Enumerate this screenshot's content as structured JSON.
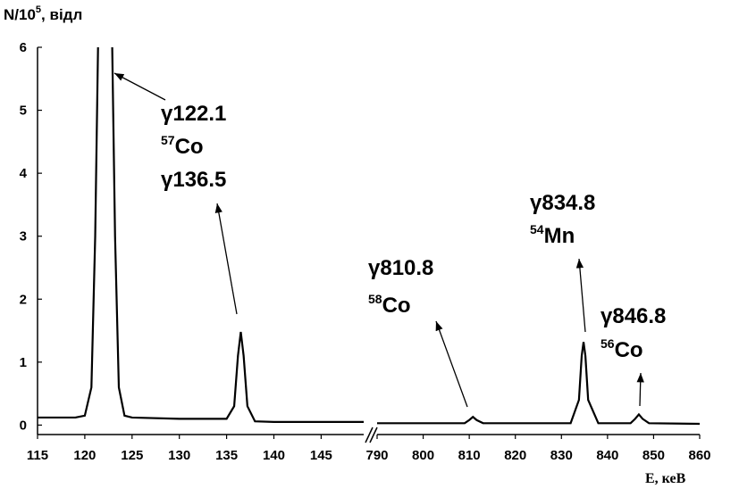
{
  "chart_data": {
    "type": "line",
    "y_label": {
      "base": "N/10",
      "sup": "5",
      "rest": ", відл"
    },
    "x_label": "E, кеВ",
    "color": "#000000",
    "ylim": [
      -0.15,
      6
    ],
    "yticks": [
      0,
      1,
      2,
      3,
      4,
      5,
      6
    ],
    "panels": [
      {
        "xlim": [
          115,
          149.5
        ],
        "xticks": [
          115,
          120,
          125,
          130,
          135,
          140,
          145
        ],
        "x": [
          115,
          119,
          120,
          120.7,
          121.1,
          121.4,
          122.1,
          122.9,
          123.2,
          123.6,
          124.2,
          125,
          130,
          135,
          135.8,
          136.2,
          136.5,
          136.8,
          137.2,
          138,
          140,
          149.5
        ],
        "values": [
          0.12,
          0.12,
          0.15,
          0.6,
          3,
          6,
          null,
          6,
          3,
          0.6,
          0.15,
          0.12,
          0.1,
          0.1,
          0.3,
          1.1,
          1.48,
          1.1,
          0.3,
          0.06,
          0.05,
          0.05
        ]
      },
      {
        "xlim": [
          790,
          860
        ],
        "xticks": [
          790,
          800,
          810,
          820,
          830,
          840,
          850,
          860
        ],
        "x": [
          790,
          809,
          810,
          810.8,
          811.6,
          813,
          832,
          833.8,
          834.4,
          834.8,
          835.2,
          835.8,
          838,
          845,
          846,
          846.8,
          847.6,
          849,
          860
        ],
        "values": [
          0.03,
          0.03,
          0.08,
          0.13,
          0.08,
          0.03,
          0.03,
          0.4,
          1.1,
          1.32,
          1.1,
          0.4,
          0.03,
          0.03,
          0.1,
          0.17,
          0.1,
          0.03,
          0.02
        ]
      }
    ],
    "annotations": [
      {
        "lines": [
          {
            "text": "γ122.1"
          },
          {
            "sup": "57",
            "text": "Co"
          },
          {
            "text": "γ136.5"
          }
        ]
      },
      {
        "lines": [
          {
            "text": "γ810.8"
          },
          {
            "sup": "58",
            "text": "Co"
          }
        ]
      },
      {
        "lines": [
          {
            "text": "γ834.8"
          },
          {
            "sup": "54",
            "text": "Mn"
          }
        ]
      },
      {
        "lines": [
          {
            "text": "γ846.8"
          },
          {
            "sup": "56",
            "text": "Co"
          }
        ]
      }
    ]
  }
}
